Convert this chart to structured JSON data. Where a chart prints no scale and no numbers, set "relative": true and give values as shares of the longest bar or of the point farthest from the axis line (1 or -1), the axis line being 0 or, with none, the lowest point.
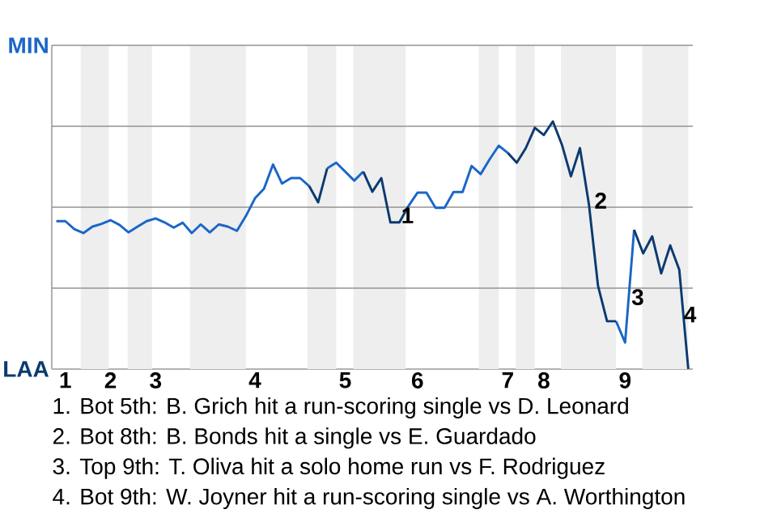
{
  "chart_data": {
    "type": "line",
    "categories": [
      null,
      "1",
      null,
      null,
      null,
      null,
      "2",
      null,
      null,
      null,
      null,
      "3",
      null,
      null,
      null,
      null,
      null,
      null,
      null,
      null,
      null,
      null,
      "4",
      null,
      null,
      null,
      null,
      null,
      null,
      null,
      null,
      null,
      "5",
      null,
      null,
      null,
      null,
      null,
      null,
      null,
      "6",
      null,
      null,
      null,
      null,
      null,
      null,
      null,
      null,
      null,
      "7",
      null,
      null,
      null,
      "8",
      null,
      null,
      null,
      null,
      null,
      null,
      null,
      null,
      "9",
      null,
      null,
      null,
      null,
      null,
      null,
      null
    ],
    "relative": true,
    "series": [
      {
        "name": "MIN",
        "color": "#1a66c8",
        "values": [
          0.597,
          0.597,
          0.565,
          0.549,
          0.575,
          0.586,
          0.601,
          0.582,
          0.552,
          0.575,
          0.597,
          0.608,
          0.592,
          0.571,
          0.591,
          0.549,
          0.584,
          0.552,
          0.584,
          0.575,
          0.558,
          0.618,
          0.689,
          0.728,
          0.826,
          0.749,
          0.771,
          0.771,
          0.739,
          null,
          0.81,
          0.833,
          0.797,
          0.761,
          0.797,
          null,
          null,
          null,
          null,
          0.658,
          0.712,
          0.712,
          0.651,
          0.651,
          0.715,
          0.715,
          0.82,
          0.787,
          0.847,
          0.902,
          0.873,
          null,
          null,
          null,
          null,
          null,
          null,
          null,
          null,
          null,
          null,
          null,
          0.193,
          0.107,
          0.562,
          null,
          null,
          null,
          null,
          null,
          null
        ]
      },
      {
        "name": "LAA",
        "color": "#0b3a70",
        "values": [
          null,
          null,
          null,
          null,
          null,
          null,
          null,
          null,
          null,
          null,
          null,
          null,
          null,
          null,
          null,
          null,
          null,
          null,
          null,
          null,
          null,
          null,
          null,
          null,
          null,
          null,
          null,
          null,
          0.739,
          0.673,
          0.81,
          null,
          null,
          null,
          0.797,
          0.716,
          0.771,
          0.592,
          0.592,
          0.658,
          null,
          null,
          null,
          null,
          null,
          null,
          null,
          null,
          null,
          null,
          0.873,
          0.833,
          0.892,
          0.974,
          0.945,
          1,
          0.906,
          0.778,
          0.892,
          0.663,
          0.336,
          0.193,
          0.193,
          null,
          0.562,
          0.467,
          0.536,
          0.386,
          0.499,
          0.401,
          0
        ]
      }
    ],
    "grid": "y",
    "annotations": [
      "1",
      "2",
      "3",
      "4",
      "1. Bot 5th: B. Grich hit a run-scoring single vs D. Leonard",
      "2. Bot 8th: B. Bonds hit a single vs E. Guardado",
      "3. Top 9th: T. Oliva hit a solo home run vs F. Rodriguez",
      "4. Bot 9th: W. Joyner hit a run-scoring single vs A. Worthington"
    ]
  }
}
